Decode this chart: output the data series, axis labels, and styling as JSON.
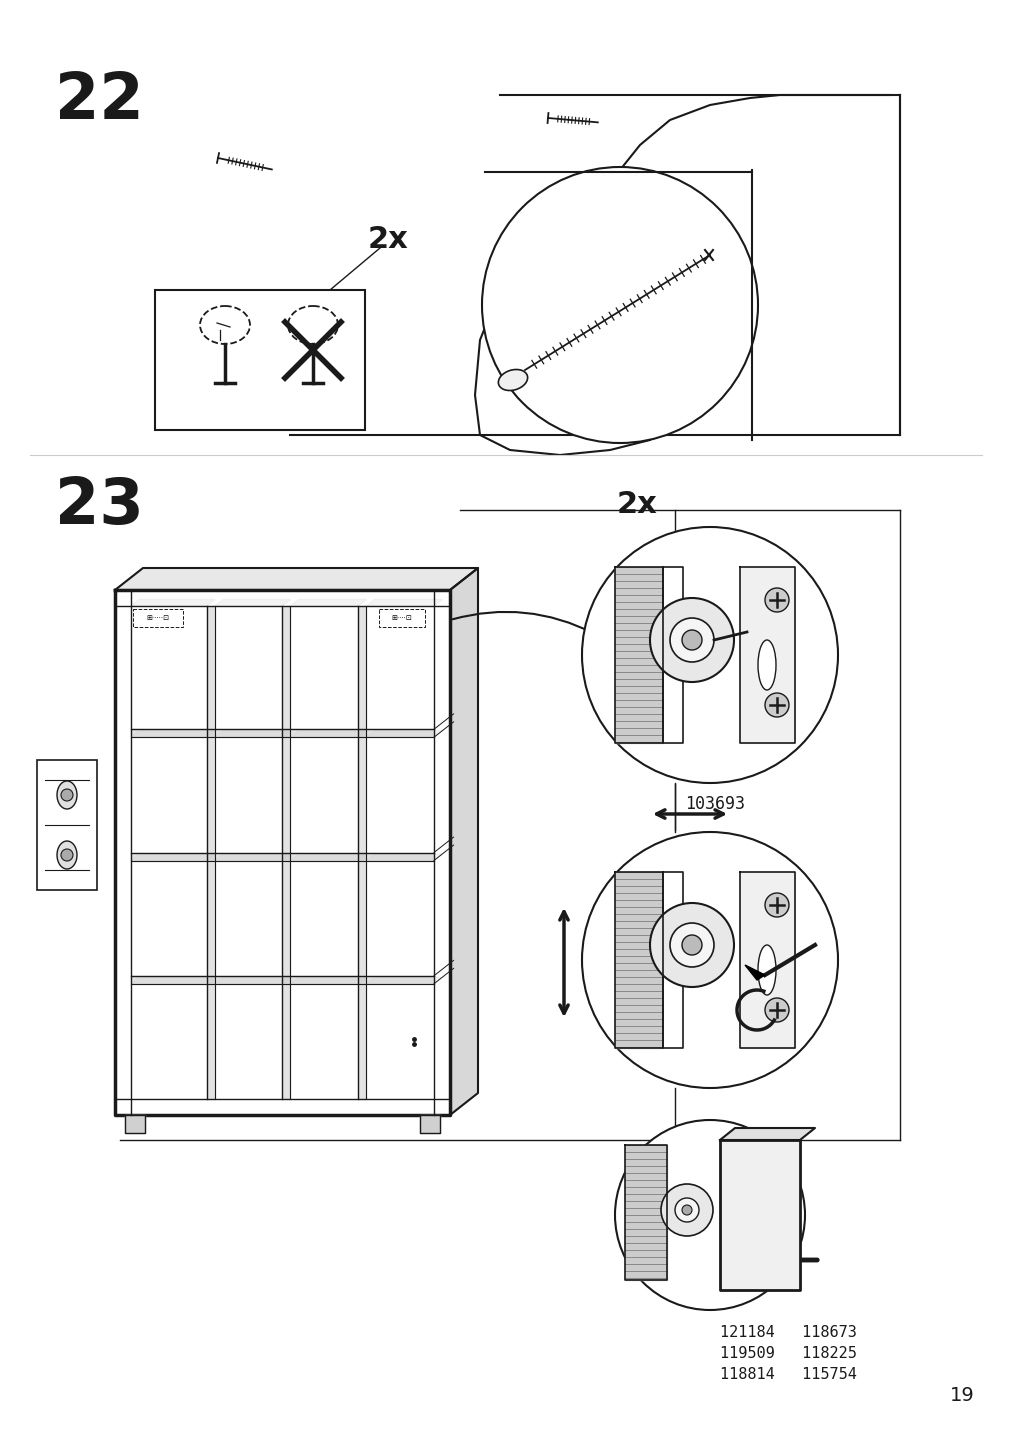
{
  "page_number": "19",
  "step_22": "22",
  "step_23": "23",
  "bg_color": "#ffffff",
  "line_color": "#1a1a1a",
  "text_color": "#1a1a1a",
  "part_number_top": "103693",
  "part_numbers_bottom": "121184   118673\n119509   118225\n118814   115754",
  "qty_22": "2x",
  "qty_23": "2x"
}
